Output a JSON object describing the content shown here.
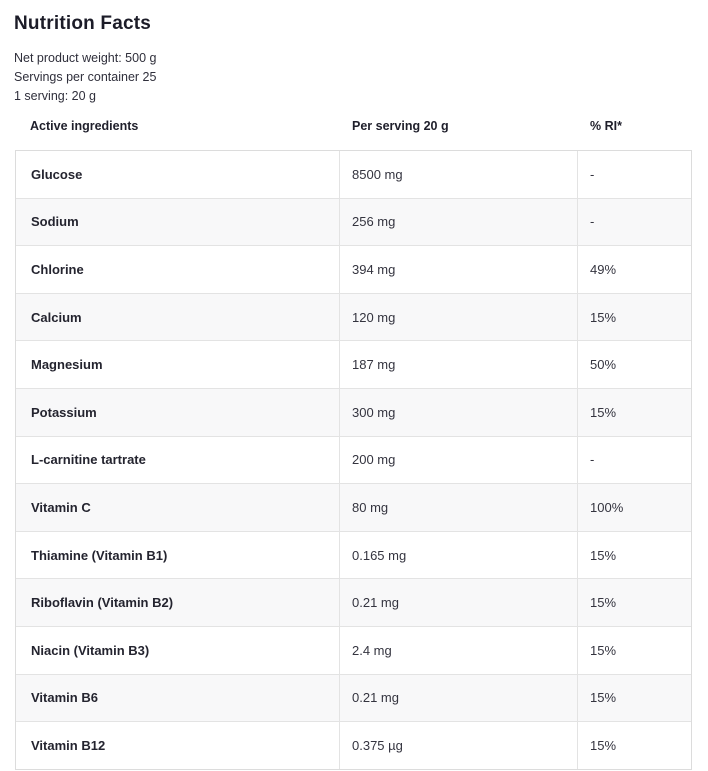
{
  "page": {
    "title": "Nutrition Facts",
    "meta_lines": [
      "Net product weight: 500 g",
      "Servings per container 25",
      "1 serving: 20 g"
    ]
  },
  "table": {
    "columns": {
      "ingredients": "Active ingredients",
      "per_serving": "Per serving 20 g",
      "ri": "% RI*"
    },
    "rows": [
      {
        "name": "Glucose",
        "amount": "8500 mg",
        "ri": "-"
      },
      {
        "name": "Sodium",
        "amount": "256 mg",
        "ri": "-"
      },
      {
        "name": "Chlorine",
        "amount": "394 mg",
        "ri": "49%"
      },
      {
        "name": "Calcium",
        "amount": "120 mg",
        "ri": "15%"
      },
      {
        "name": "Magnesium",
        "amount": "187 mg",
        "ri": "50%"
      },
      {
        "name": "Potassium",
        "amount": "300 mg",
        "ri": "15%"
      },
      {
        "name": "L-carnitine tartrate",
        "amount": "200 mg",
        "ri": "-"
      },
      {
        "name": "Vitamin C",
        "amount": "80 mg",
        "ri": "100%"
      },
      {
        "name": "Thiamine (Vitamin B1)",
        "amount": "0.165 mg",
        "ri": "15%"
      },
      {
        "name": "Riboflavin (Vitamin B2)",
        "amount": "0.21 mg",
        "ri": "15%"
      },
      {
        "name": "Niacin (Vitamin B3)",
        "amount": "2.4 mg",
        "ri": "15%"
      },
      {
        "name": "Vitamin B6",
        "amount": "0.21 mg",
        "ri": "15%"
      },
      {
        "name": "Vitamin B12",
        "amount": "0.375 µg",
        "ri": "15%"
      }
    ]
  },
  "colors": {
    "text_dark": "#1c1c28",
    "border": "#e3e3e3",
    "row_alt_bg": "#f8f8f9"
  }
}
